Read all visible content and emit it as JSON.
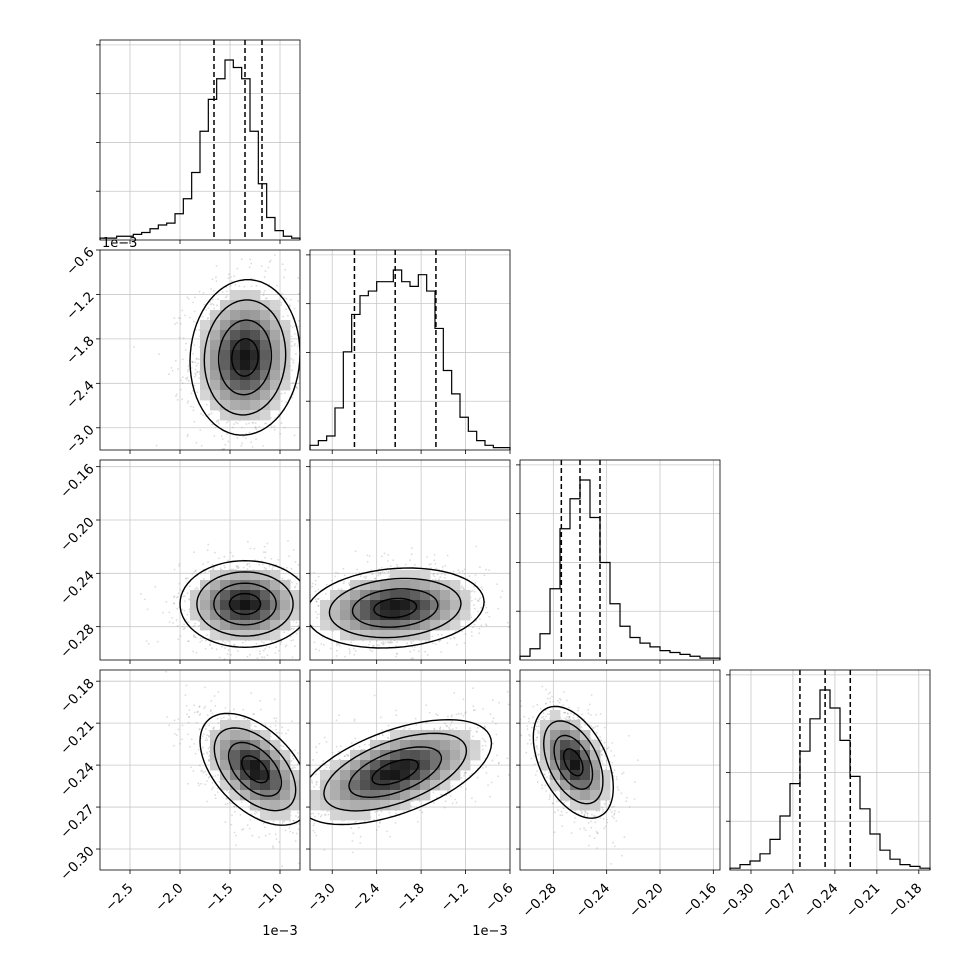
{
  "chart_data": {
    "type": "corner",
    "n_params": 4,
    "axes": [
      {
        "range": [
          -2.8,
          -0.8
        ],
        "ticks": [
          -2.5,
          -2.0,
          -1.5,
          -1.0
        ],
        "tick_labels": [
          "−2.5",
          "−2.0",
          "−1.5",
          "−1.0"
        ],
        "offset_label": "1e−3"
      },
      {
        "range": [
          -3.3,
          -0.6
        ],
        "ticks": [
          -3.0,
          -2.4,
          -1.8,
          -1.2,
          -0.6
        ],
        "tick_labels": [
          "−3.0",
          "−2.4",
          "−1.8",
          "−1.2",
          "−0.6"
        ],
        "offset_label": "1e−3"
      },
      {
        "range": [
          -0.305,
          -0.155
        ],
        "ticks": [
          -0.28,
          -0.24,
          -0.2,
          -0.16
        ],
        "tick_labels": [
          "−0.28",
          "−0.24",
          "−0.20",
          "−0.16"
        ],
        "offset_label": ""
      },
      {
        "range": [
          -0.315,
          -0.172
        ],
        "ticks": [
          -0.3,
          -0.27,
          -0.24,
          -0.21,
          -0.18
        ],
        "tick_labels": [
          "−0.30",
          "−0.27",
          "−0.24",
          "−0.21",
          "−0.18"
        ],
        "offset_label": ""
      }
    ],
    "marginals": [
      {
        "param": 0,
        "quantiles": [
          -1.66,
          -1.35,
          -1.18
        ],
        "counts": [
          1,
          1,
          2,
          2,
          3,
          4,
          6,
          8,
          9,
          14,
          22,
          36,
          58,
          75,
          86,
          96,
          92,
          86,
          58,
          30,
          12,
          5,
          2,
          1
        ]
      },
      {
        "param": 1,
        "quantiles": [
          -2.7,
          -2.15,
          -1.6
        ],
        "counts": [
          2,
          4,
          6,
          18,
          42,
          58,
          66,
          68,
          72,
          72,
          77,
          72,
          70,
          75,
          68,
          52,
          34,
          24,
          14,
          8,
          4,
          2,
          1,
          1
        ]
      },
      {
        "param": 2,
        "quantiles": [
          -0.274,
          -0.26,
          -0.245
        ],
        "counts": [
          2,
          6,
          14,
          38,
          70,
          86,
          96,
          76,
          52,
          30,
          18,
          12,
          9,
          7,
          5,
          4,
          3,
          2,
          1,
          1
        ]
      },
      {
        "param": 3,
        "quantiles": [
          -0.265,
          -0.247,
          -0.229
        ],
        "counts": [
          1,
          3,
          5,
          9,
          17,
          30,
          48,
          66,
          84,
          100,
          90,
          72,
          52,
          34,
          20,
          11,
          6,
          3,
          2,
          1
        ]
      }
    ],
    "pairs": [
      {
        "x_param": 0,
        "y_param": 1,
        "center": [
          -1.35,
          -2.05
        ],
        "spread": [
          0.22,
          0.42
        ],
        "rho": 0.05
      },
      {
        "x_param": 0,
        "y_param": 2,
        "center": [
          -1.35,
          -0.263
        ],
        "spread": [
          0.26,
          0.013
        ],
        "rho": 0.0
      },
      {
        "x_param": 1,
        "y_param": 2,
        "center": [
          -2.15,
          -0.266
        ],
        "spread": [
          0.48,
          0.012
        ],
        "rho": 0.15
      },
      {
        "x_param": 0,
        "y_param": 3,
        "center": [
          -1.25,
          -0.243
        ],
        "spread": [
          0.22,
          0.016
        ],
        "rho": -0.5
      },
      {
        "x_param": 1,
        "y_param": 3,
        "center": [
          -2.15,
          -0.245
        ],
        "spread": [
          0.52,
          0.015
        ],
        "rho": 0.55
      },
      {
        "x_param": 2,
        "y_param": 3,
        "center": [
          -0.265,
          -0.238
        ],
        "spread": [
          0.012,
          0.016
        ],
        "rho": -0.45
      }
    ],
    "diag_y_ticks": 4,
    "grid": true,
    "title": "",
    "legend": "none"
  }
}
